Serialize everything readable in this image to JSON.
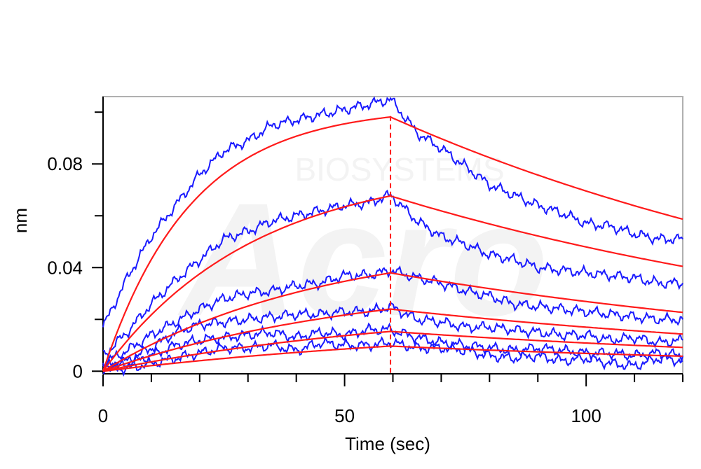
{
  "chart_data": {
    "type": "line",
    "xlabel": "Time (sec)",
    "ylabel": "nm",
    "xlim": [
      0,
      120
    ],
    "ylim": [
      -0.001,
      0.106
    ],
    "x_ticks": [
      0,
      50,
      100
    ],
    "y_ticks": [
      0,
      0.04,
      0.08
    ],
    "x_tick_labels": [
      "0",
      "50",
      "100"
    ],
    "y_tick_labels": [
      "0",
      "0.04",
      "0.08"
    ],
    "x_minor_step": 10,
    "y_minor_step": 0.02,
    "association_end_x": 59.5,
    "grid": false,
    "legend": "none",
    "colors": {
      "measured": "#1a1aff",
      "fit": "#ff1a1a",
      "marker": "#ff1a1a",
      "frame": "#b0b0b0",
      "watermark": "#f3f3f3"
    },
    "watermark_text": [
      "BIOSYSTEMS",
      "Acro"
    ],
    "fit_series": [
      {
        "plateau": 0.102,
        "kobs": 0.055,
        "kdiss": 0.0085
      },
      {
        "plateau": 0.0795,
        "kobs": 0.032,
        "kdiss": 0.0085
      },
      {
        "plateau": 0.052,
        "kobs": 0.022,
        "kdiss": 0.0085
      },
      {
        "plateau": 0.0365,
        "kobs": 0.018,
        "kdiss": 0.0085
      },
      {
        "plateau": 0.026,
        "kobs": 0.015,
        "kdiss": 0.0085
      },
      {
        "plateau": 0.019,
        "kobs": 0.012,
        "kdiss": 0.0085
      }
    ],
    "series": [
      {
        "x": [
          0,
          5,
          10,
          15,
          20,
          25,
          30,
          35,
          40,
          45,
          50,
          55,
          59.5,
          65,
          70,
          75,
          80,
          85,
          90,
          95,
          100,
          105,
          110,
          115,
          120
        ],
        "y": [
          0.017,
          0.036,
          0.052,
          0.064,
          0.076,
          0.085,
          0.089,
          0.095,
          0.097,
          0.099,
          0.101,
          0.103,
          0.105,
          0.092,
          0.086,
          0.079,
          0.072,
          0.068,
          0.064,
          0.061,
          0.057,
          0.056,
          0.053,
          0.051,
          0.051
        ]
      },
      {
        "x": [
          0,
          5,
          10,
          15,
          20,
          25,
          30,
          35,
          40,
          45,
          50,
          55,
          59.5,
          65,
          70,
          75,
          80,
          85,
          90,
          95,
          100,
          105,
          110,
          115,
          120
        ],
        "y": [
          0.006,
          0.015,
          0.026,
          0.035,
          0.043,
          0.051,
          0.054,
          0.058,
          0.06,
          0.062,
          0.064,
          0.065,
          0.068,
          0.058,
          0.052,
          0.049,
          0.045,
          0.043,
          0.04,
          0.039,
          0.038,
          0.037,
          0.036,
          0.034,
          0.034
        ]
      },
      {
        "x": [
          0,
          5,
          10,
          15,
          20,
          25,
          30,
          35,
          40,
          45,
          50,
          55,
          59.5,
          65,
          70,
          75,
          80,
          85,
          90,
          95,
          100,
          105,
          110,
          115,
          120
        ],
        "y": [
          0.003,
          0.008,
          0.014,
          0.019,
          0.024,
          0.028,
          0.03,
          0.031,
          0.033,
          0.034,
          0.037,
          0.037,
          0.039,
          0.036,
          0.034,
          0.031,
          0.029,
          0.026,
          0.025,
          0.024,
          0.023,
          0.022,
          0.021,
          0.02,
          0.02
        ]
      },
      {
        "x": [
          0,
          5,
          10,
          15,
          20,
          25,
          30,
          35,
          40,
          45,
          50,
          55,
          59.5,
          65,
          70,
          75,
          80,
          85,
          90,
          95,
          100,
          105,
          110,
          115,
          120
        ],
        "y": [
          0.002,
          0.004,
          0.009,
          0.015,
          0.018,
          0.019,
          0.02,
          0.021,
          0.022,
          0.022,
          0.023,
          0.023,
          0.025,
          0.02,
          0.019,
          0.017,
          0.017,
          0.016,
          0.015,
          0.014,
          0.014,
          0.012,
          0.013,
          0.011,
          0.012
        ]
      },
      {
        "x": [
          0,
          5,
          10,
          15,
          20,
          25,
          30,
          35,
          40,
          45,
          50,
          55,
          59.5,
          65,
          70,
          75,
          80,
          85,
          90,
          95,
          100,
          105,
          110,
          115,
          120
        ],
        "y": [
          0.002,
          0.003,
          0.006,
          0.01,
          0.012,
          0.013,
          0.014,
          0.015,
          0.013,
          0.015,
          0.014,
          0.016,
          0.016,
          0.013,
          0.011,
          0.01,
          0.009,
          0.008,
          0.009,
          0.008,
          0.007,
          0.007,
          0.006,
          0.007,
          0.006
        ]
      },
      {
        "x": [
          0,
          5,
          10,
          15,
          20,
          25,
          30,
          35,
          40,
          45,
          50,
          55,
          59.5,
          65,
          70,
          75,
          80,
          85,
          90,
          95,
          100,
          105,
          110,
          115,
          120
        ],
        "y": [
          0.001,
          0.001,
          0.003,
          0.005,
          0.007,
          0.009,
          0.009,
          0.01,
          0.008,
          0.011,
          0.01,
          0.01,
          0.011,
          0.009,
          0.009,
          0.008,
          0.006,
          0.005,
          0.006,
          0.004,
          0.005,
          0.003,
          0.002,
          0.005,
          0.004
        ]
      }
    ]
  }
}
